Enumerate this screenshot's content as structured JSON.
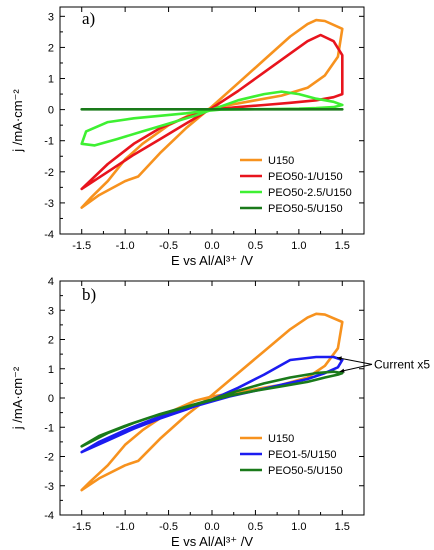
{
  "chart_data": [
    {
      "type": "line",
      "panel_label": "a)",
      "xlabel": "E vs Al/Al³⁺ /V",
      "ylabel": "j /mA·cm⁻²",
      "xlim": [
        -1.75,
        1.75
      ],
      "ylim": [
        -4,
        3.3
      ],
      "xticks": [
        -1.5,
        -1.0,
        -0.5,
        0.0,
        0.5,
        1.0,
        1.5
      ],
      "xtick_labels": [
        "-1.5",
        "-1.0",
        "-0.5",
        "0.0",
        "0.5",
        "1.0",
        "1.5"
      ],
      "yticks": [
        -4,
        -3,
        -2,
        -1,
        0,
        1,
        2,
        3
      ],
      "ytick_labels": [
        "-4",
        "-3",
        "-2",
        "-1",
        "0",
        "1",
        "2",
        "3"
      ],
      "grid": false,
      "legend_position": "bottom-right",
      "series": [
        {
          "name": "U150",
          "color": "#f7921e",
          "x": [
            -1.5,
            -1.3,
            -1.0,
            -0.85,
            -0.6,
            -0.3,
            0.0,
            0.3,
            0.6,
            0.9,
            1.1,
            1.2,
            1.3,
            1.5,
            1.45,
            1.3,
            1.1,
            0.8,
            0.5,
            0.2,
            0.0,
            -0.2,
            -0.5,
            -0.8,
            -1.0,
            -1.2,
            -1.4,
            -1.5
          ],
          "y": [
            -3.15,
            -2.75,
            -2.3,
            -2.15,
            -1.4,
            -0.6,
            0.1,
            0.85,
            1.6,
            2.35,
            2.75,
            2.88,
            2.85,
            2.6,
            1.7,
            1.1,
            0.7,
            0.45,
            0.3,
            0.15,
            0.05,
            -0.1,
            -0.5,
            -1.1,
            -1.6,
            -2.3,
            -2.85,
            -3.15
          ]
        },
        {
          "name": "PEO50-1/U150",
          "color": "#e8141d",
          "x": [
            -1.5,
            -1.2,
            -0.9,
            -0.6,
            -0.3,
            0.0,
            0.3,
            0.6,
            0.9,
            1.1,
            1.25,
            1.4,
            1.5,
            1.5,
            1.4,
            1.2,
            0.9,
            0.6,
            0.3,
            0.0,
            -0.3,
            -0.6,
            -0.9,
            -1.2,
            -1.5
          ],
          "y": [
            -2.55,
            -2.0,
            -1.45,
            -0.95,
            -0.45,
            0.05,
            0.6,
            1.2,
            1.8,
            2.2,
            2.4,
            2.2,
            1.75,
            0.5,
            0.4,
            0.3,
            0.22,
            0.15,
            0.08,
            0.0,
            -0.25,
            -0.6,
            -1.1,
            -1.75,
            -2.55
          ]
        },
        {
          "name": "PEO50-2.5/U150",
          "color": "#3ef032",
          "x": [
            -1.5,
            -1.35,
            -1.1,
            -0.8,
            -0.5,
            -0.2,
            0.0,
            0.3,
            0.6,
            0.8,
            1.0,
            1.2,
            1.4,
            1.5,
            1.4,
            1.2,
            1.0,
            0.7,
            0.4,
            0.1,
            -0.1,
            -0.3,
            -0.6,
            -0.9,
            -1.2,
            -1.45,
            -1.5
          ],
          "y": [
            -1.1,
            -1.15,
            -0.95,
            -0.7,
            -0.45,
            -0.2,
            0.0,
            0.3,
            0.5,
            0.58,
            0.5,
            0.35,
            0.25,
            0.15,
            0.08,
            0.05,
            0.03,
            0.02,
            0.01,
            0.0,
            -0.05,
            -0.12,
            -0.2,
            -0.28,
            -0.4,
            -0.7,
            -1.1
          ]
        },
        {
          "name": "PEO50-5/U150",
          "color": "#1a7a1a",
          "x": [
            -1.5,
            -1.0,
            -0.5,
            0.0,
            0.5,
            1.0,
            1.5
          ],
          "y": [
            0.01,
            0.01,
            0.01,
            0.01,
            0.01,
            0.01,
            0.01
          ]
        }
      ]
    },
    {
      "type": "line",
      "panel_label": "b)",
      "xlabel": "E vs Al/Al³⁺ /V",
      "ylabel": "j /mA·cm⁻²",
      "xlim": [
        -1.75,
        1.75
      ],
      "ylim": [
        -4,
        4
      ],
      "xticks": [
        -1.5,
        -1.0,
        -0.5,
        0.0,
        0.5,
        1.0,
        1.5
      ],
      "xtick_labels": [
        "-1.5",
        "-1.0",
        "-0.5",
        "0.0",
        "0.5",
        "1.0",
        "1.5"
      ],
      "yticks": [
        -4,
        -3,
        -2,
        -1,
        0,
        1,
        2,
        3,
        4
      ],
      "ytick_labels": [
        "-4",
        "-3",
        "-2",
        "-1",
        "0",
        "1",
        "2",
        "3",
        "4"
      ],
      "grid": false,
      "legend_position": "bottom-right",
      "annotation": "Current x5",
      "series": [
        {
          "name": "U150",
          "color": "#f7921e",
          "x": [
            -1.5,
            -1.3,
            -1.0,
            -0.85,
            -0.6,
            -0.3,
            0.0,
            0.3,
            0.6,
            0.9,
            1.1,
            1.2,
            1.3,
            1.5,
            1.45,
            1.3,
            1.1,
            0.8,
            0.5,
            0.2,
            0.0,
            -0.2,
            -0.5,
            -0.8,
            -1.0,
            -1.2,
            -1.4,
            -1.5
          ],
          "y": [
            -3.15,
            -2.75,
            -2.3,
            -2.15,
            -1.4,
            -0.6,
            0.1,
            0.85,
            1.6,
            2.35,
            2.75,
            2.88,
            2.85,
            2.6,
            1.7,
            1.1,
            0.7,
            0.45,
            0.3,
            0.15,
            0.05,
            -0.1,
            -0.5,
            -1.1,
            -1.6,
            -2.3,
            -2.85,
            -3.15
          ]
        },
        {
          "name": "PEO1-5/U150",
          "color": "#1c1cf0",
          "x": [
            -1.5,
            -1.2,
            -0.9,
            -0.6,
            -0.3,
            0.0,
            0.3,
            0.6,
            0.9,
            1.2,
            1.4,
            1.5,
            1.45,
            1.3,
            1.1,
            0.8,
            0.5,
            0.2,
            -0.1,
            -0.4,
            -0.7,
            -1.0,
            -1.3,
            -1.5
          ],
          "y": [
            -1.85,
            -1.45,
            -1.05,
            -0.7,
            -0.4,
            -0.05,
            0.35,
            0.8,
            1.3,
            1.4,
            1.4,
            1.3,
            1.05,
            0.85,
            0.65,
            0.45,
            0.25,
            0.05,
            -0.2,
            -0.45,
            -0.75,
            -1.1,
            -1.5,
            -1.85
          ]
        },
        {
          "name": "PEO50-5/U150",
          "color": "#1a7a1a",
          "x": [
            -1.5,
            -1.2,
            -0.9,
            -0.6,
            -0.3,
            0.0,
            0.3,
            0.6,
            0.9,
            1.2,
            1.4,
            1.5,
            1.45,
            1.3,
            1.1,
            0.8,
            0.5,
            0.2,
            -0.1,
            -0.4,
            -0.7,
            -1.0,
            -1.3,
            -1.5
          ],
          "y": [
            -1.65,
            -1.2,
            -0.85,
            -0.55,
            -0.3,
            -0.05,
            0.25,
            0.5,
            0.7,
            0.85,
            0.9,
            0.85,
            0.8,
            0.7,
            0.55,
            0.4,
            0.25,
            0.08,
            -0.15,
            -0.4,
            -0.65,
            -0.95,
            -1.3,
            -1.65
          ]
        }
      ]
    }
  ]
}
